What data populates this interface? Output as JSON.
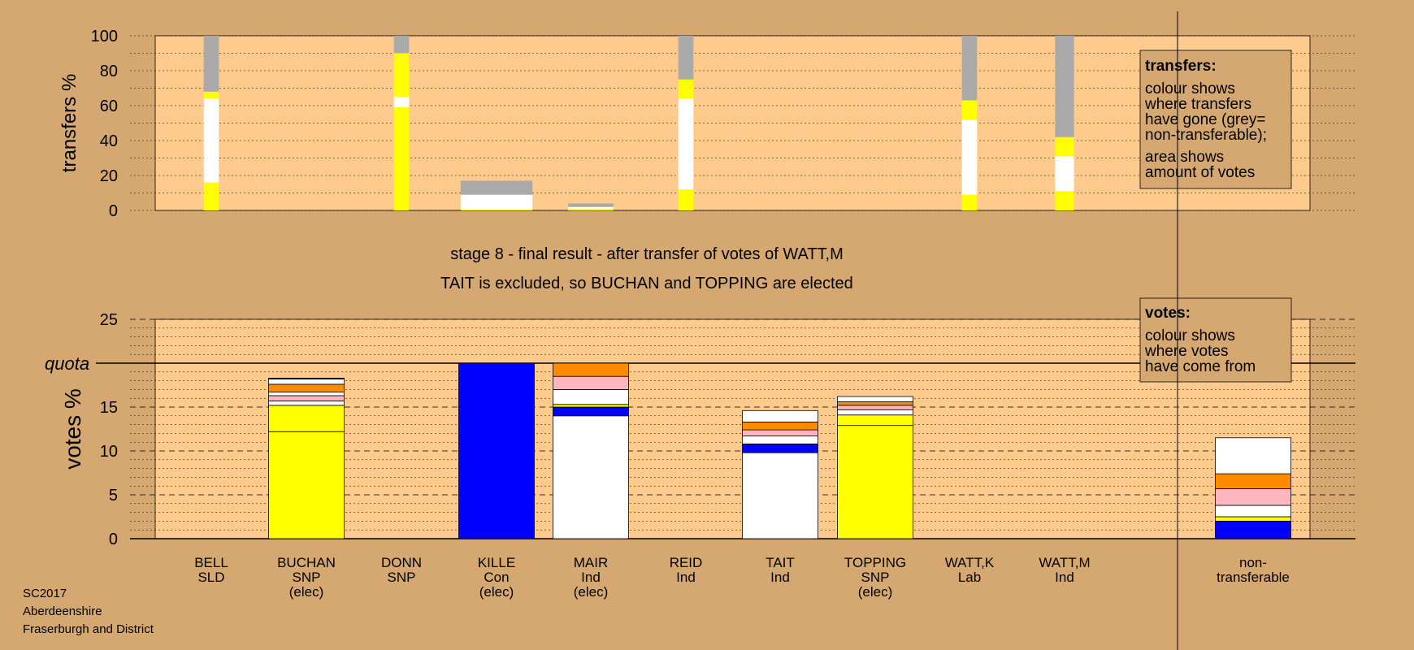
{
  "colors": {
    "background": "#d5a872",
    "plot_area": "#fecb8c",
    "SNP": "#ffff00",
    "Con": "#0000ff",
    "Ind": "#ffffff",
    "Lab": "#ff8c00",
    "SLD": "#ffb6c1",
    "non_transferable": "#aaaaaa"
  },
  "chart_data": [
    {
      "type": "bar",
      "ylabel": "transfers %",
      "ylim": [
        0,
        100
      ],
      "yticks": [
        0,
        20,
        40,
        60,
        80,
        100
      ],
      "grid": true,
      "note": "colour shows where transfers have gone (grey= non-transferable); area shows amount of votes",
      "legend": {
        "title": "transfers:",
        "lines1": [
          "colour shows",
          "where transfers",
          "have gone (grey=",
          "non-transferable);"
        ],
        "lines2": [
          "area shows",
          "amount of votes"
        ],
        "placement": "top-right"
      },
      "categories": [
        "BELL",
        "BUCHAN",
        "DONN",
        "KILLE",
        "MAIR",
        "REID",
        "TAIT",
        "TOPPING",
        "WATT,K",
        "WATT,M"
      ],
      "transfer_bars": [
        {
          "category": "BELL",
          "width_fraction": 0.2,
          "segments": [
            {
              "to": "BUCHAN",
              "party": "SNP",
              "from": 0,
              "to_pct": 16
            },
            {
              "to": "MAIR",
              "party": "Ind",
              "from": 16,
              "to_pct": 62
            },
            {
              "to": "TAIT",
              "party": "Ind",
              "from": 62,
              "to_pct": 64
            },
            {
              "to": "TOPPING",
              "party": "SNP",
              "from": 64,
              "to_pct": 68
            },
            {
              "to": "non-transferable",
              "party": "non_transferable",
              "from": 68,
              "to_pct": 100
            }
          ]
        },
        {
          "category": "DONN",
          "width_fraction": 0.2,
          "segments": [
            {
              "to": "BUCHAN",
              "party": "SNP",
              "from": 0,
              "to_pct": 59
            },
            {
              "to": "MAIR",
              "party": "Ind",
              "from": 59,
              "to_pct": 65
            },
            {
              "to": "TOPPING",
              "party": "SNP",
              "from": 65,
              "to_pct": 90
            },
            {
              "to": "non-transferable",
              "party": "non_transferable",
              "from": 90,
              "to_pct": 100
            }
          ]
        },
        {
          "category": "KILLE",
          "width_fraction": 0.95,
          "segments": [
            {
              "to": "BUCHAN",
              "party": "SNP",
              "from": 0,
              "to_pct": 0.5
            },
            {
              "to": "MAIR",
              "party": "Ind",
              "from": 0.5,
              "to_pct": 8
            },
            {
              "to": "TAIT",
              "party": "Ind",
              "from": 8,
              "to_pct": 9
            },
            {
              "to": "non-transferable",
              "party": "non_transferable",
              "from": 9,
              "to_pct": 17
            }
          ]
        },
        {
          "category": "MAIR",
          "width_fraction": 0.6,
          "segments": [
            {
              "to": "BUCHAN",
              "party": "SNP",
              "from": 0,
              "to_pct": 1
            },
            {
              "to": "TAIT",
              "party": "Ind",
              "from": 1,
              "to_pct": 2
            },
            {
              "to": "non-transferable",
              "party": "non_transferable",
              "from": 2,
              "to_pct": 4
            }
          ]
        },
        {
          "category": "REID",
          "width_fraction": 0.2,
          "segments": [
            {
              "to": "BUCHAN",
              "party": "SNP",
              "from": 0,
              "to_pct": 12
            },
            {
              "to": "MAIR",
              "party": "Ind",
              "from": 12,
              "to_pct": 62
            },
            {
              "to": "TAIT",
              "party": "Ind",
              "from": 62,
              "to_pct": 64
            },
            {
              "to": "TOPPING",
              "party": "SNP",
              "from": 64,
              "to_pct": 75
            },
            {
              "to": "non-transferable",
              "party": "non_transferable",
              "from": 75,
              "to_pct": 100
            }
          ]
        },
        {
          "category": "WATT,K",
          "width_fraction": 0.2,
          "segments": [
            {
              "to": "BUCHAN",
              "party": "SNP",
              "from": 0,
              "to_pct": 9
            },
            {
              "to": "MAIR",
              "party": "Ind",
              "from": 9,
              "to_pct": 50
            },
            {
              "to": "TAIT",
              "party": "Ind",
              "from": 50,
              "to_pct": 52
            },
            {
              "to": "TOPPING",
              "party": "SNP",
              "from": 52,
              "to_pct": 63
            },
            {
              "to": "non-transferable",
              "party": "non_transferable",
              "from": 63,
              "to_pct": 100
            }
          ]
        },
        {
          "category": "WATT,M",
          "width_fraction": 0.25,
          "segments": [
            {
              "to": "BUCHAN",
              "party": "SNP",
              "from": 0,
              "to_pct": 11
            },
            {
              "to": "TAIT",
              "party": "Ind",
              "from": 11,
              "to_pct": 31
            },
            {
              "to": "TOPPING",
              "party": "SNP",
              "from": 31,
              "to_pct": 42
            },
            {
              "to": "non-transferable",
              "party": "non_transferable",
              "from": 42,
              "to_pct": 100
            }
          ]
        }
      ]
    },
    {
      "type": "bar",
      "title_line1": "stage 8 - final result - after transfer of votes of WATT,M",
      "title_line2": "TAIT is excluded, so BUCHAN and TOPPING are elected",
      "ylabel": "votes %",
      "ylim": [
        0,
        25
      ],
      "yticks": [
        0,
        5,
        10,
        15,
        20,
        25
      ],
      "quota": 20,
      "quota_label": "quota",
      "grid": true,
      "legend": {
        "title": "votes:",
        "lines": [
          "colour shows",
          "where votes",
          "have come from"
        ],
        "placement": "top-right"
      },
      "candidates": [
        {
          "name": "BELL",
          "party": "SLD",
          "status": "",
          "segments": []
        },
        {
          "name": "BUCHAN",
          "party": "SNP",
          "status": "(elec)",
          "segments": [
            {
              "source": "BUCHAN",
              "party": "SNP",
              "value": 12.2
            },
            {
              "source": "DONN",
              "party": "SNP",
              "value": 3.0
            },
            {
              "source": "MAIR",
              "party": "Ind",
              "value": 0.5
            },
            {
              "source": "BELL",
              "party": "SLD",
              "value": 0.6
            },
            {
              "source": "REID",
              "party": "Ind",
              "value": 0.4
            },
            {
              "source": "WATT,K",
              "party": "Lab",
              "value": 0.9
            },
            {
              "source": "WATT,M",
              "party": "Ind",
              "value": 0.6
            },
            {
              "source": "KILLE",
              "party": "Con",
              "value": 0.1
            }
          ]
        },
        {
          "name": "DONN",
          "party": "SNP",
          "status": "",
          "segments": []
        },
        {
          "name": "KILLE",
          "party": "Con",
          "status": "(elec)",
          "segments": [
            {
              "source": "KILLE",
              "party": "Con",
              "value": 20.0
            }
          ]
        },
        {
          "name": "MAIR",
          "party": "Ind",
          "status": "(elec)",
          "segments": [
            {
              "source": "MAIR",
              "party": "Ind",
              "value": 14.0
            },
            {
              "source": "KILLE",
              "party": "Con",
              "value": 1.0
            },
            {
              "source": "DONN",
              "party": "SNP",
              "value": 0.3
            },
            {
              "source": "REID",
              "party": "Ind",
              "value": 1.7
            },
            {
              "source": "BELL",
              "party": "SLD",
              "value": 1.5
            },
            {
              "source": "WATT,K",
              "party": "Lab",
              "value": 1.5
            }
          ]
        },
        {
          "name": "REID",
          "party": "Ind",
          "status": "",
          "segments": []
        },
        {
          "name": "TAIT",
          "party": "Ind",
          "status": "",
          "segments": [
            {
              "source": "TAIT",
              "party": "Ind",
              "value": 9.8
            },
            {
              "source": "KILLE",
              "party": "Con",
              "value": 1.0
            },
            {
              "source": "REID",
              "party": "Ind",
              "value": 0.9
            },
            {
              "source": "BELL",
              "party": "SLD",
              "value": 0.7
            },
            {
              "source": "WATT,K",
              "party": "Lab",
              "value": 0.9
            },
            {
              "source": "WATT,M",
              "party": "Ind",
              "value": 1.3
            }
          ]
        },
        {
          "name": "TOPPING",
          "party": "SNP",
          "status": "(elec)",
          "segments": [
            {
              "source": "TOPPING",
              "party": "SNP",
              "value": 12.9
            },
            {
              "source": "DONN",
              "party": "SNP",
              "value": 1.2
            },
            {
              "source": "REID",
              "party": "Ind",
              "value": 0.6
            },
            {
              "source": "BELL",
              "party": "SLD",
              "value": 0.5
            },
            {
              "source": "WATT,K",
              "party": "Lab",
              "value": 0.4
            },
            {
              "source": "WATT,M",
              "party": "Ind",
              "value": 0.6
            }
          ]
        },
        {
          "name": "WATT,K",
          "party": "Lab",
          "status": "",
          "segments": []
        },
        {
          "name": "WATT,M",
          "party": "Ind",
          "status": "",
          "segments": []
        }
      ],
      "non_transferable": {
        "label_line1": "non-",
        "label_line2": "transferable",
        "segments": [
          {
            "source": "KILLE",
            "party": "Con",
            "value": 2.0
          },
          {
            "source": "DONN",
            "party": "SNP",
            "value": 0.5
          },
          {
            "source": "REID",
            "party": "Ind",
            "value": 1.3
          },
          {
            "source": "BELL",
            "party": "SLD",
            "value": 1.9
          },
          {
            "source": "WATT,K",
            "party": "Lab",
            "value": 1.7
          },
          {
            "source": "WATT,M",
            "party": "Ind",
            "value": 4.1
          }
        ]
      }
    }
  ],
  "footer": {
    "line1": "SC2017",
    "line2": "Aberdeenshire",
    "line3": "Fraserburgh and District"
  }
}
